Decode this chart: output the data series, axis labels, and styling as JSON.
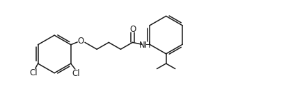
{
  "background": "#ffffff",
  "line_color": "#1a1a1a",
  "line_width": 1.1,
  "font_size": 8.5,
  "figsize": [
    4.34,
    1.52
  ],
  "dpi": 100,
  "xlim": [
    0.0,
    8.5
  ],
  "ylim": [
    0.0,
    3.2
  ]
}
